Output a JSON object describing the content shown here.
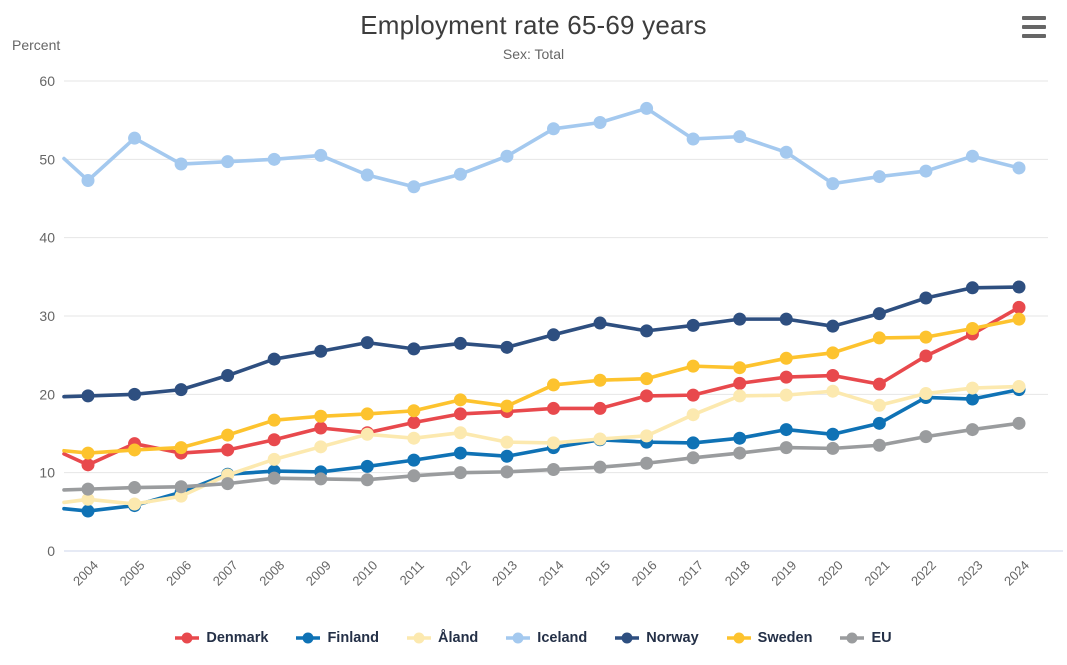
{
  "header": {
    "title": "Employment rate 65-69 years",
    "subtitle": "Sex: Total"
  },
  "menu": {
    "icon": "hamburger-icon"
  },
  "chart_data": {
    "type": "line",
    "title": "Employment rate 65-69 years",
    "subtitle": "Sex: Total",
    "ylabel": "Percent",
    "ylim": [
      0,
      60
    ],
    "yticks": [
      0,
      10,
      20,
      30,
      40,
      50,
      60
    ],
    "grid": true,
    "legend_position": "bottom",
    "categories": [
      "2004",
      "2005",
      "2006",
      "2007",
      "2008",
      "2009",
      "2010",
      "2011",
      "2012",
      "2013",
      "2014",
      "2015",
      "2016",
      "2017",
      "2018",
      "2019",
      "2020",
      "2021",
      "2022",
      "2023",
      "2024"
    ],
    "series": [
      {
        "name": "Denmark",
        "color": "#e8494d",
        "lead_in": 12.4,
        "values": [
          11.0,
          13.7,
          12.5,
          12.9,
          14.2,
          15.7,
          15.1,
          16.4,
          17.5,
          17.8,
          18.2,
          18.2,
          19.8,
          19.9,
          21.4,
          22.2,
          22.4,
          21.3,
          24.9,
          27.7,
          31.1
        ]
      },
      {
        "name": "Finland",
        "color": "#0f72b5",
        "lead_in": 5.4,
        "values": [
          5.1,
          5.8,
          7.5,
          9.8,
          10.2,
          10.1,
          10.8,
          11.6,
          12.5,
          12.1,
          13.2,
          14.2,
          13.9,
          13.8,
          14.4,
          15.5,
          14.9,
          16.3,
          19.6,
          19.4,
          20.6
        ]
      },
      {
        "name": "Åland",
        "color": "#fce9af",
        "lead_in": 6.2,
        "values": [
          6.6,
          6.0,
          7.0,
          9.7,
          11.7,
          13.3,
          14.9,
          14.4,
          15.1,
          13.9,
          13.8,
          14.3,
          14.7,
          17.4,
          19.8,
          19.9,
          20.4,
          18.6,
          20.1,
          20.8,
          21.0
        ]
      },
      {
        "name": "Iceland",
        "color": "#a4c9ef",
        "lead_in": 50.1,
        "values": [
          47.3,
          52.7,
          49.4,
          49.7,
          50.0,
          50.5,
          48.0,
          46.5,
          48.1,
          50.4,
          53.9,
          54.7,
          56.5,
          52.6,
          52.9,
          50.9,
          46.9,
          47.8,
          48.5,
          50.4,
          48.9
        ]
      },
      {
        "name": "Norway",
        "color": "#2e4f80",
        "lead_in": 19.7,
        "values": [
          19.8,
          20.0,
          20.6,
          22.4,
          24.5,
          25.5,
          26.6,
          25.8,
          26.5,
          26.0,
          27.6,
          29.1,
          28.1,
          28.8,
          29.6,
          29.6,
          28.7,
          30.3,
          32.3,
          33.6,
          33.7
        ]
      },
      {
        "name": "Sweden",
        "color": "#fdc32e",
        "lead_in": 12.8,
        "values": [
          12.5,
          12.9,
          13.2,
          14.8,
          16.7,
          17.2,
          17.5,
          17.9,
          19.3,
          18.5,
          21.2,
          21.8,
          22.0,
          23.6,
          23.4,
          24.6,
          25.3,
          27.2,
          27.3,
          28.4,
          29.6
        ]
      },
      {
        "name": "EU",
        "color": "#9a9c9e",
        "lead_in": 7.8,
        "values": [
          7.9,
          8.1,
          8.2,
          8.6,
          9.3,
          9.2,
          9.1,
          9.6,
          10.0,
          10.1,
          10.4,
          10.7,
          11.2,
          11.9,
          12.5,
          13.2,
          13.1,
          13.5,
          14.6,
          15.5,
          16.3
        ]
      }
    ],
    "colors": {
      "gridline": "#e6e6e6",
      "axis_line": "#ccd6eb",
      "tick_label": "#666666",
      "legend_text": "#243047"
    }
  }
}
